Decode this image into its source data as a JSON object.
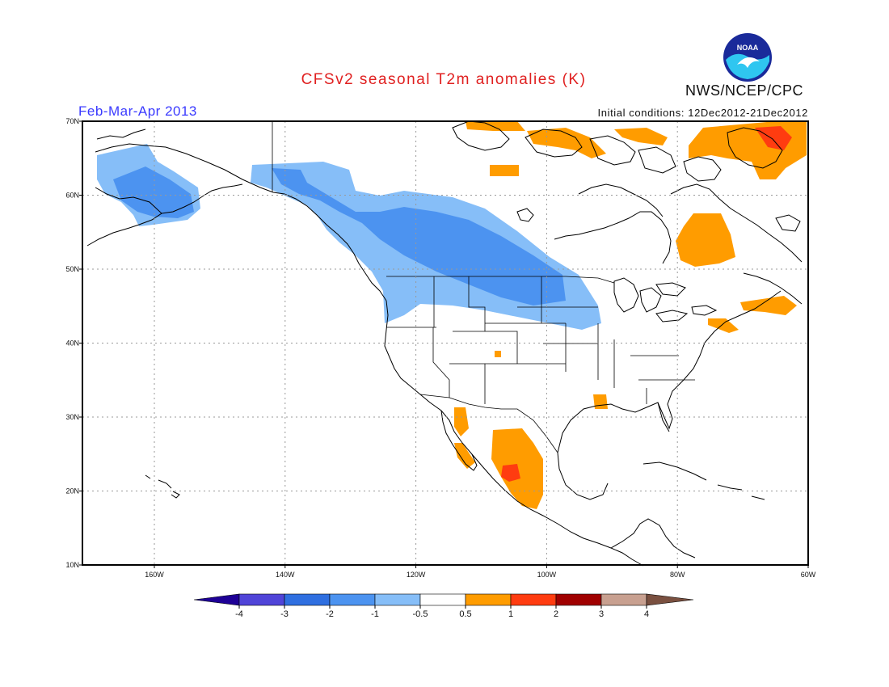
{
  "header": {
    "title": "CFSv2 seasonal T2m anomalies (K)",
    "period": "Feb-Mar-Apr 2013",
    "initial_conditions": "Initial conditions: 12Dec2012-21Dec2012",
    "agency": "NWS/NCEP/CPC",
    "logo_text": "NOAA"
  },
  "map": {
    "lat_labels": [
      "70N",
      "60N",
      "50N",
      "40N",
      "30N",
      "20N",
      "10N"
    ],
    "lon_labels": [
      "160W",
      "140W",
      "120W",
      "100W",
      "80W",
      "60W"
    ],
    "lon_range": [
      -171,
      -60
    ],
    "lat_range": [
      10,
      70
    ]
  },
  "colorbar": {
    "labels": [
      "-4",
      "-3",
      "-2",
      "-1",
      "-0.5",
      "0.5",
      "1",
      "2",
      "3",
      "4"
    ],
    "colors": [
      "#1e0096",
      "#5044d8",
      "#2f6fe0",
      "#4c93f0",
      "#86bef8",
      "#ffffff",
      "#ff9c00",
      "#ff3c10",
      "#a00000",
      "#c8a090",
      "#7a5040"
    ]
  },
  "colors": {
    "anomaly_cold_1": "#86bef8",
    "anomaly_cold_2": "#4c93f0",
    "anomaly_warm_1": "#ff9c00",
    "anomaly_warm_2": "#ff3c10"
  }
}
